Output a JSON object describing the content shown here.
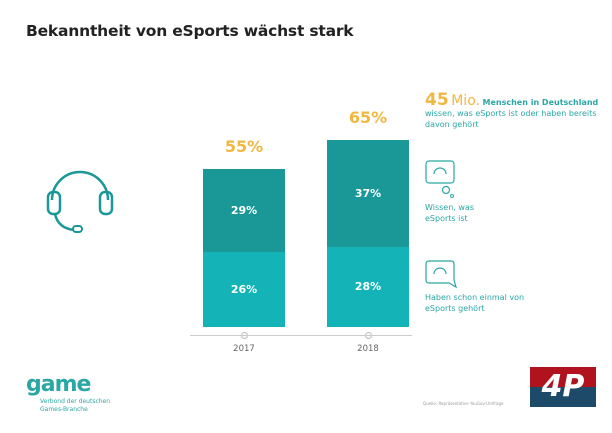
{
  "title": "Bekanntheit von eSports wächst stark",
  "colors": {
    "dark_teal": "#1a9797",
    "light_teal": "#14b3b7",
    "accent": "#f1b740",
    "text_teal": "#2aa7a5"
  },
  "chart_data": {
    "type": "bar",
    "stacked": true,
    "categories": [
      "2017",
      "2018"
    ],
    "series": [
      {
        "name": "Haben schon einmal von eSports gehört",
        "values": [
          26,
          28
        ],
        "labels": [
          "26%",
          "28%"
        ]
      },
      {
        "name": "Wissen, was eSports ist",
        "values": [
          29,
          37
        ],
        "labels": [
          "29%",
          "37%"
        ]
      }
    ],
    "totals": [
      "55%",
      "65%"
    ],
    "ylim": [
      0,
      70
    ]
  },
  "callout": {
    "number": "45",
    "unit": "Mio.",
    "text_bold": "Menschen in Deutschland",
    "text": "wissen, was eSports ist oder haben bereits davon gehört"
  },
  "legend": [
    {
      "label": "Wissen, was eSports ist",
      "icon": "headset-thought-bubble-icon"
    },
    {
      "label": "Haben schon einmal von eSports gehört",
      "icon": "headset-speech-bubble-icon"
    }
  ],
  "logo": {
    "name": "game",
    "sub1": "Verbond der deutschen",
    "sub2": "Games-Branche"
  },
  "source": "Quelle: Repräsentative YouGov-Umfrage",
  "watermark": "4P"
}
